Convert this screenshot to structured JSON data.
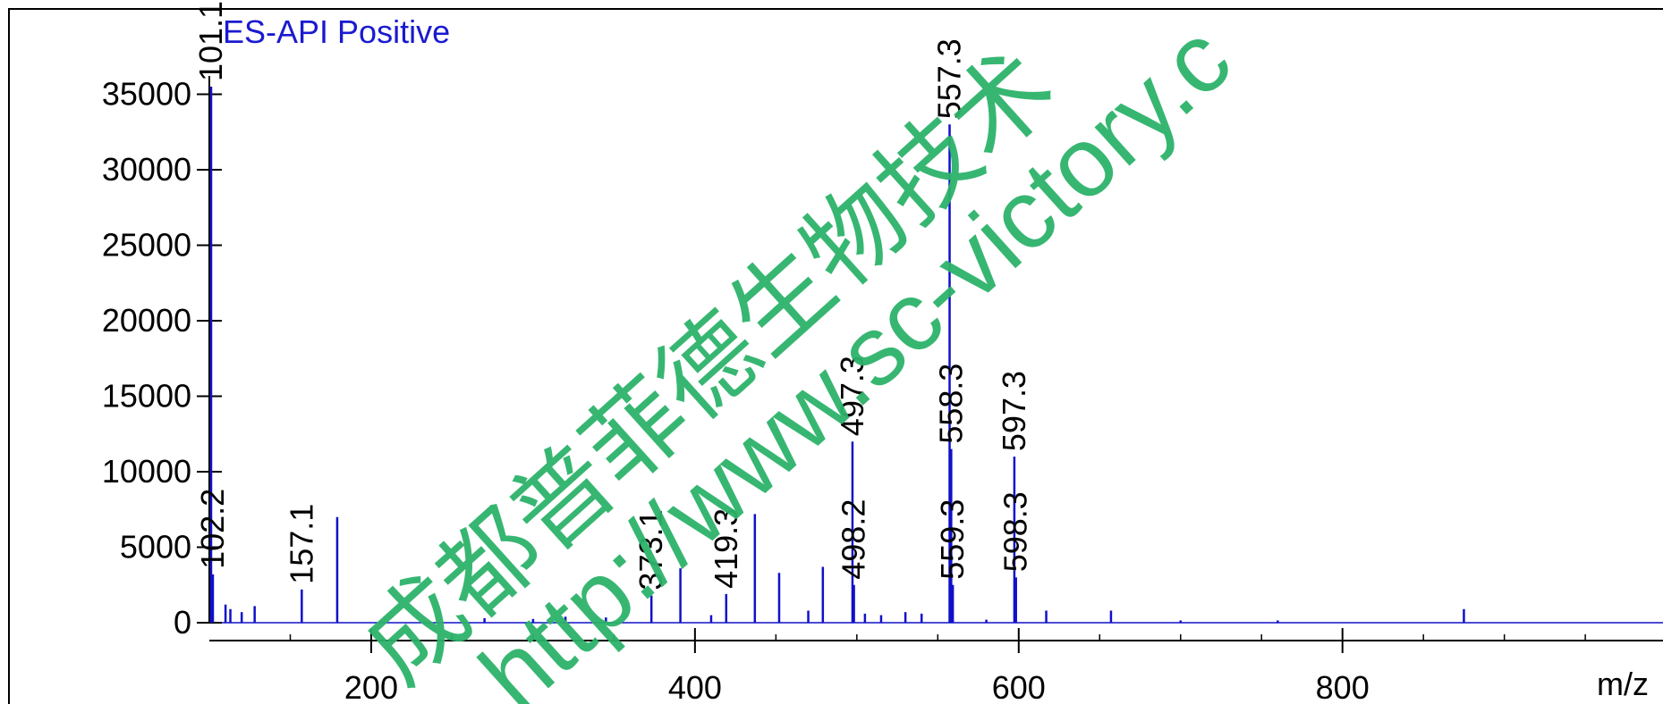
{
  "chart_data": {
    "type": "stem",
    "title": "ES-API Positive",
    "x_label": "m/z",
    "color": "#1010c8",
    "x": [
      101.1,
      102.2,
      157.1,
      373.1,
      419.3,
      497.3,
      498.2,
      557.3,
      558.3,
      559.3,
      597.3,
      598.3
    ],
    "values": [
      35500,
      3200,
      2200,
      1800,
      1900,
      12000,
      2500,
      33000,
      11500,
      2500,
      11000,
      3000
    ],
    "unlabeled_x": [
      110,
      113,
      120,
      128,
      179,
      270,
      300,
      320,
      345,
      391,
      410,
      437,
      452,
      470,
      479,
      505,
      515,
      530,
      540,
      580,
      617,
      657,
      700,
      760,
      875
    ],
    "unlabeled_values": [
      1200,
      900,
      700,
      1100,
      7000,
      300,
      250,
      400,
      350,
      3600,
      500,
      7200,
      3300,
      800,
      3700,
      600,
      500,
      700,
      600,
      200,
      800,
      800,
      150,
      150,
      900
    ],
    "xlim": [
      100,
      998
    ],
    "ylim": [
      0,
      35000
    ],
    "xticks": [
      200,
      400,
      600,
      800
    ],
    "xminor": [
      150,
      250,
      300,
      350,
      450,
      500,
      550,
      650,
      700,
      750,
      850,
      900,
      950
    ],
    "yticks": [
      0,
      5000,
      10000,
      15000,
      20000,
      25000,
      30000,
      35000
    ],
    "watermark": [
      "成都普菲德生物技术",
      "http://www.sc-victory.c"
    ]
  }
}
